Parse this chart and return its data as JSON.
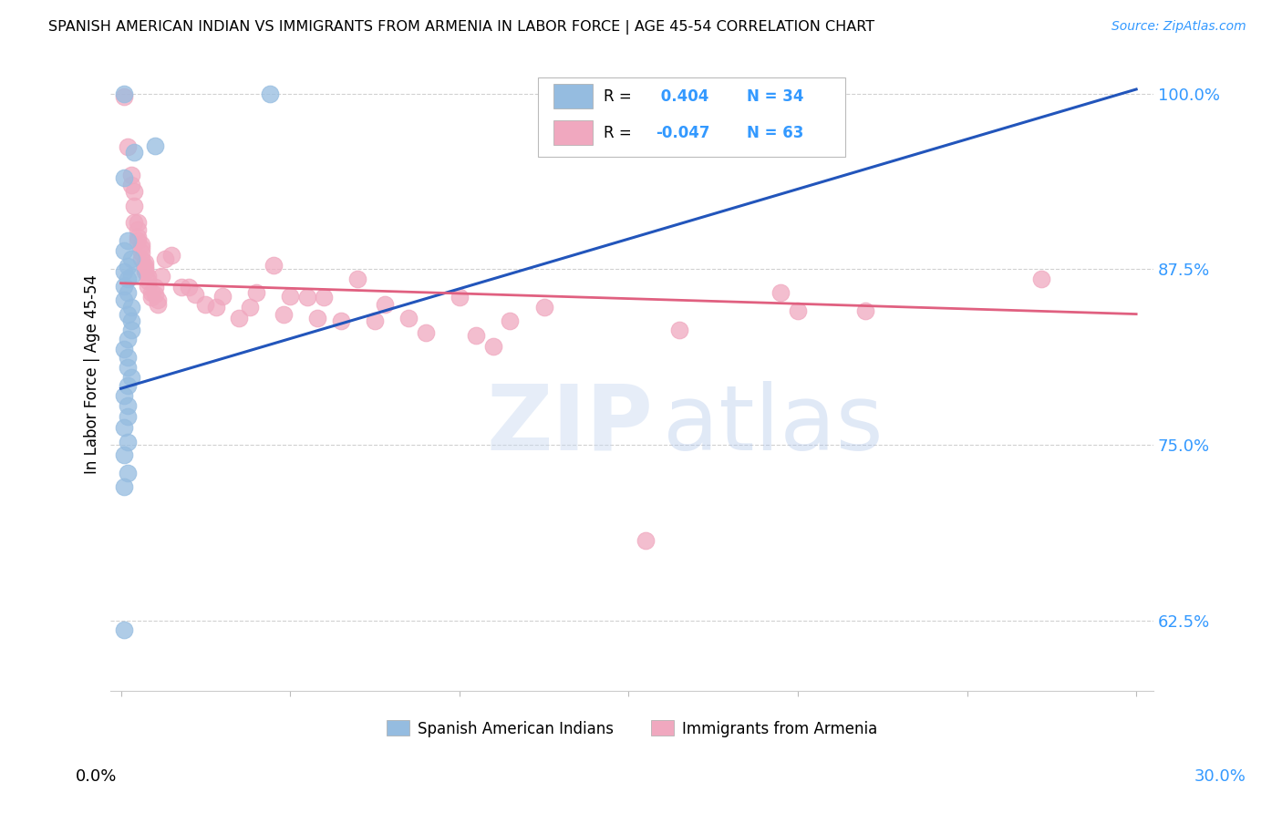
{
  "title": "SPANISH AMERICAN INDIAN VS IMMIGRANTS FROM ARMENIA IN LABOR FORCE | AGE 45-54 CORRELATION CHART",
  "source": "Source: ZipAtlas.com",
  "ylabel": "In Labor Force | Age 45-54",
  "ylim": [
    0.575,
    1.025
  ],
  "xlim": [
    -0.003,
    0.305
  ],
  "yticks": [
    0.625,
    0.75,
    0.875,
    1.0
  ],
  "ytick_labels": [
    "62.5%",
    "75.0%",
    "87.5%",
    "100.0%"
  ],
  "legend_footer": [
    "Spanish American Indians",
    "Immigrants from Armenia"
  ],
  "blue_color": "#95bce0",
  "pink_color": "#f0a8bf",
  "blue_line_color": "#2255bb",
  "pink_line_color": "#e06080",
  "bg_color": "#ffffff",
  "grid_color": "#cccccc",
  "blue_scatter_x": [
    0.001,
    0.01,
    0.044,
    0.001,
    0.004,
    0.002,
    0.001,
    0.003,
    0.002,
    0.001,
    0.003,
    0.002,
    0.001,
    0.002,
    0.001,
    0.003,
    0.002,
    0.003,
    0.003,
    0.002,
    0.001,
    0.002,
    0.002,
    0.003,
    0.002,
    0.001,
    0.002,
    0.002,
    0.001,
    0.002,
    0.001,
    0.002,
    0.001,
    0.001
  ],
  "blue_scatter_y": [
    1.0,
    0.963,
    1.0,
    0.94,
    0.958,
    0.895,
    0.888,
    0.882,
    0.877,
    0.873,
    0.87,
    0.868,
    0.863,
    0.858,
    0.853,
    0.848,
    0.843,
    0.838,
    0.832,
    0.825,
    0.818,
    0.812,
    0.805,
    0.798,
    0.792,
    0.785,
    0.778,
    0.77,
    0.762,
    0.752,
    0.743,
    0.73,
    0.72,
    0.618
  ],
  "pink_scatter_x": [
    0.001,
    0.002,
    0.003,
    0.003,
    0.004,
    0.004,
    0.004,
    0.005,
    0.005,
    0.005,
    0.005,
    0.006,
    0.006,
    0.006,
    0.006,
    0.007,
    0.007,
    0.007,
    0.007,
    0.008,
    0.008,
    0.008,
    0.009,
    0.009,
    0.01,
    0.01,
    0.011,
    0.011,
    0.012,
    0.013,
    0.015,
    0.018,
    0.02,
    0.022,
    0.025,
    0.028,
    0.03,
    0.035,
    0.038,
    0.04,
    0.045,
    0.048,
    0.05,
    0.055,
    0.058,
    0.06,
    0.065,
    0.07,
    0.075,
    0.078,
    0.085,
    0.09,
    0.1,
    0.105,
    0.11,
    0.115,
    0.125,
    0.155,
    0.165,
    0.195,
    0.2,
    0.22,
    0.272
  ],
  "pink_scatter_y": [
    0.998,
    0.962,
    0.942,
    0.935,
    0.93,
    0.92,
    0.908,
    0.908,
    0.903,
    0.898,
    0.895,
    0.893,
    0.89,
    0.887,
    0.882,
    0.88,
    0.877,
    0.875,
    0.873,
    0.87,
    0.867,
    0.863,
    0.858,
    0.855,
    0.862,
    0.857,
    0.853,
    0.85,
    0.87,
    0.882,
    0.885,
    0.862,
    0.862,
    0.857,
    0.85,
    0.848,
    0.856,
    0.84,
    0.848,
    0.858,
    0.878,
    0.843,
    0.856,
    0.855,
    0.84,
    0.855,
    0.838,
    0.868,
    0.838,
    0.85,
    0.84,
    0.83,
    0.855,
    0.828,
    0.82,
    0.838,
    0.848,
    0.682,
    0.832,
    0.858,
    0.845,
    0.845,
    0.868
  ],
  "blue_line_x": [
    0.0,
    0.3
  ],
  "blue_line_y": [
    0.79,
    1.003
  ],
  "pink_line_x": [
    0.0,
    0.3
  ],
  "pink_line_y": [
    0.865,
    0.843
  ]
}
